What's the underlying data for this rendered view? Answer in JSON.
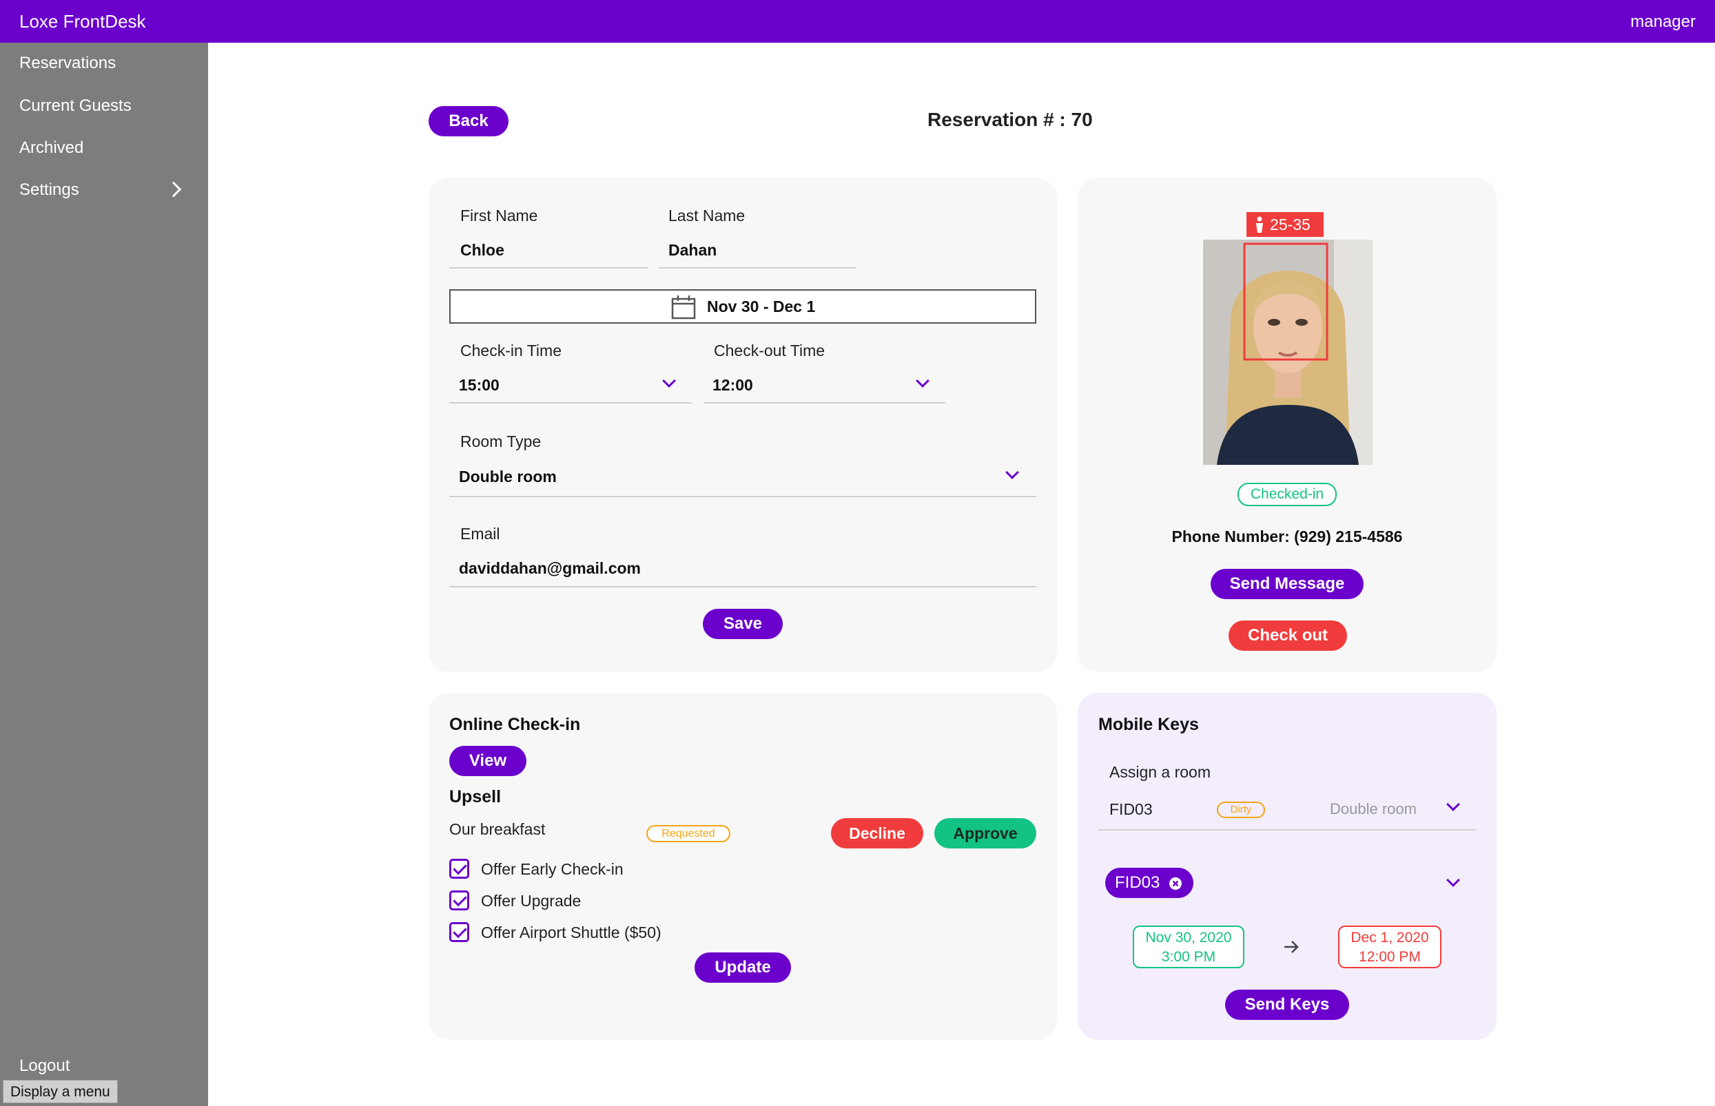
{
  "app": {
    "title": "Loxe FrontDesk",
    "user": "manager"
  },
  "sidebar": {
    "items": [
      {
        "label": "Reservations"
      },
      {
        "label": "Current Guests"
      },
      {
        "label": "Archived"
      },
      {
        "label": "Settings"
      }
    ],
    "logout": "Logout",
    "tooltip": "Display a menu"
  },
  "page": {
    "back_label": "Back",
    "title": "Reservation # : 70"
  },
  "form": {
    "first_name_label": "First Name",
    "first_name": "Chloe",
    "last_name_label": "Last Name",
    "last_name": "Dahan",
    "date_range": "Nov 30 - Dec 1",
    "checkin_time_label": "Check-in Time",
    "checkin_time": "15:00",
    "checkout_time_label": "Check-out Time",
    "checkout_time": "12:00",
    "room_type_label": "Room Type",
    "room_type": "Double room",
    "email_label": "Email",
    "email": "daviddahan@gmail.com",
    "save_label": "Save"
  },
  "guest": {
    "age_range": "25-35",
    "status": "Checked-in",
    "phone": "Phone Number: (929) 215-4586",
    "send_message_label": "Send Message",
    "checkout_label": "Check out"
  },
  "online_checkin": {
    "title": "Online Check-in",
    "view_label": "View",
    "upsell_title": "Upsell",
    "upsell_item": "Our breakfast",
    "upsell_status": "Requested",
    "decline_label": "Decline",
    "approve_label": "Approve",
    "offers": [
      {
        "label": "Offer Early Check-in",
        "checked": true
      },
      {
        "label": "Offer Upgrade",
        "checked": true
      },
      {
        "label": "Offer Airport Shuttle ($50)",
        "checked": true
      }
    ],
    "update_label": "Update"
  },
  "mobile_keys": {
    "title": "Mobile Keys",
    "assign_label": "Assign a room",
    "room": "FID03",
    "room_status": "Dirty",
    "room_type": "Double room",
    "chip": "FID03",
    "from_date": "Nov 30, 2020",
    "from_time": "3:00 PM",
    "to_date": "Dec 1, 2020",
    "to_time": "12:00 PM",
    "send_label": "Send Keys"
  },
  "colors": {
    "brand": "#6b00cc",
    "danger": "#f03c3c",
    "success": "#13c383",
    "warning": "#f2a516"
  }
}
